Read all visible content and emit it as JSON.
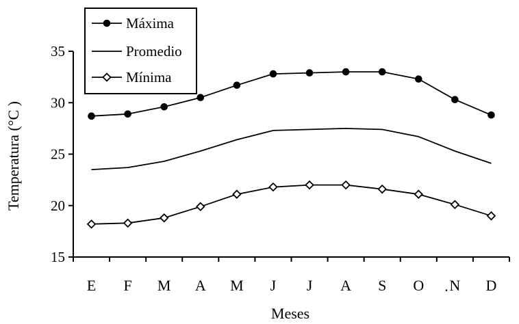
{
  "chart_data": {
    "type": "line",
    "categories": [
      "E",
      "F",
      "M",
      "A",
      "M",
      "J",
      "J",
      "A",
      "S",
      "O",
      "N",
      "D"
    ],
    "series": [
      {
        "name": "Máxima",
        "marker": "filled-circle",
        "values": [
          28.7,
          28.9,
          29.6,
          30.5,
          31.7,
          32.8,
          32.9,
          33.0,
          33.0,
          32.3,
          30.3,
          28.8
        ]
      },
      {
        "name": "Promedio",
        "marker": "none",
        "values": [
          23.5,
          23.7,
          24.3,
          25.3,
          26.4,
          27.3,
          27.4,
          27.5,
          27.4,
          26.7,
          25.3,
          24.1
        ]
      },
      {
        "name": "Mínima",
        "marker": "open-diamond",
        "values": [
          18.2,
          18.3,
          18.8,
          19.9,
          21.1,
          21.8,
          22.0,
          22.0,
          21.6,
          21.1,
          20.1,
          19.0
        ]
      }
    ],
    "title": "",
    "xlabel": "Meses",
    "ylabel": "Temperatura (°C )",
    "ylim": [
      15,
      35
    ],
    "yticks": [
      "15",
      "20",
      "25",
      "30",
      "35"
    ],
    "grid": false,
    "legend_position": "top-left",
    "stray_mark": ".",
    "colors": {
      "line": "#000000",
      "background": "#ffffff"
    }
  }
}
